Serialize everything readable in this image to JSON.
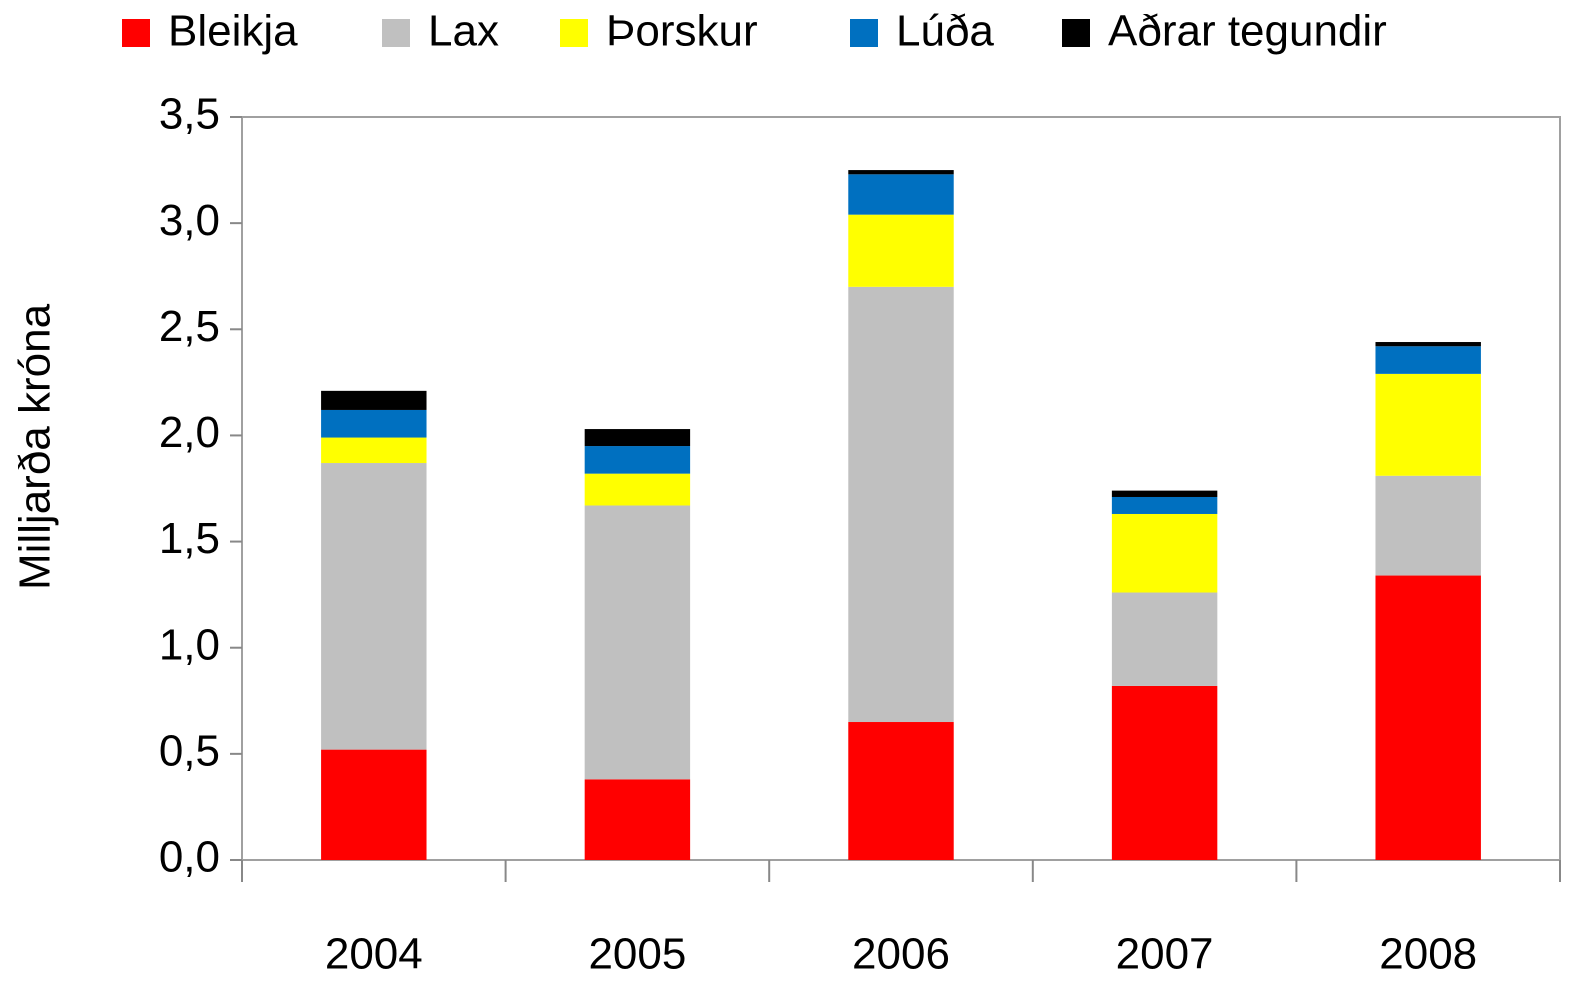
{
  "chart_data": {
    "type": "stacked_bar",
    "y_label": "Milljarða króna",
    "categories": [
      "2004",
      "2005",
      "2006",
      "2007",
      "2008"
    ],
    "series": [
      {
        "name": "Bleikja",
        "color": "#ff0000",
        "values": [
          0.52,
          0.38,
          0.65,
          0.82,
          1.34
        ]
      },
      {
        "name": "Lax",
        "color": "#c0c0c0",
        "values": [
          1.35,
          1.29,
          2.05,
          0.44,
          0.47
        ]
      },
      {
        "name": "Þorskur",
        "color": "#ffff00",
        "values": [
          0.12,
          0.15,
          0.34,
          0.37,
          0.48
        ]
      },
      {
        "name": "Lúða",
        "color": "#0070c0",
        "values": [
          0.13,
          0.13,
          0.19,
          0.08,
          0.13
        ]
      },
      {
        "name": "Aðrar tegundir",
        "color": "#000000",
        "values": [
          0.09,
          0.08,
          0.02,
          0.03,
          0.02
        ]
      }
    ],
    "ylim": [
      0,
      3.5
    ],
    "yticks": [
      {
        "value": 0,
        "label": "0,0"
      },
      {
        "value": 0.5,
        "label": "0,5"
      },
      {
        "value": 1,
        "label": "1,0"
      },
      {
        "value": 1.5,
        "label": "1,5"
      },
      {
        "value": 2,
        "label": "2,0"
      },
      {
        "value": 2.5,
        "label": "2,5"
      },
      {
        "value": 3,
        "label": "3,0"
      },
      {
        "value": 3.5,
        "label": "3,5"
      }
    ],
    "legend": "top"
  }
}
